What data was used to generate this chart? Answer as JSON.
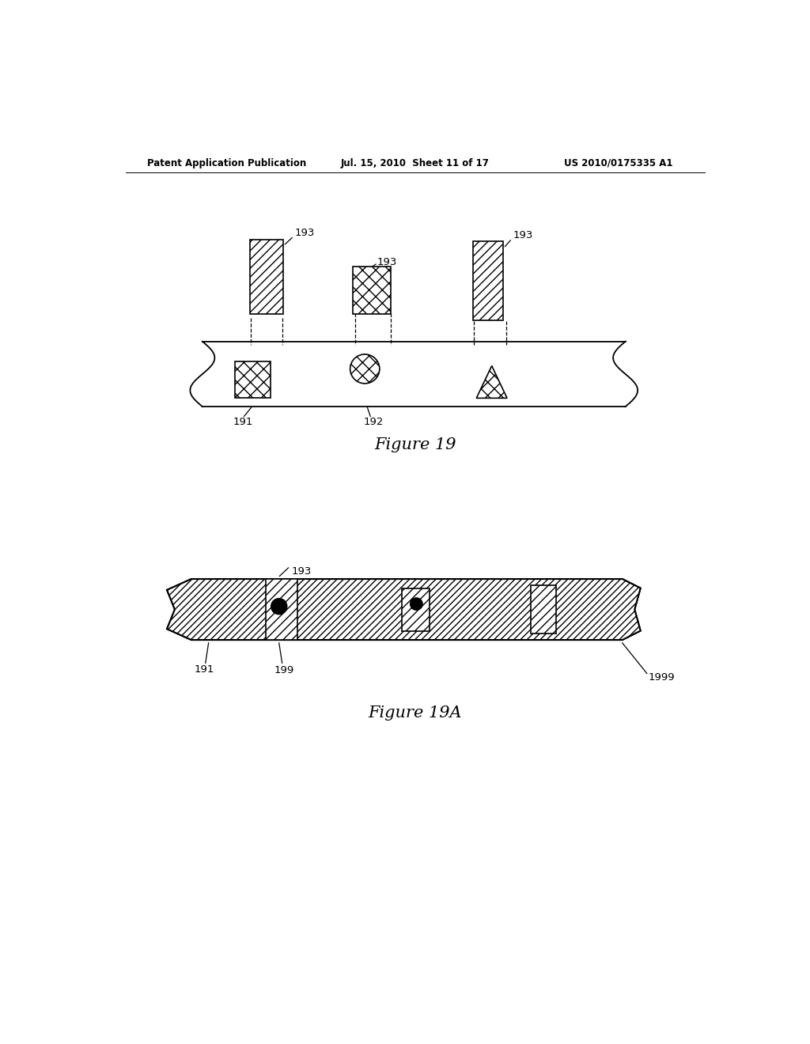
{
  "bg_color": "#ffffff",
  "header_left": "Patent Application Publication",
  "header_mid": "Jul. 15, 2010  Sheet 11 of 17",
  "header_right": "US 2010/0175335 A1",
  "fig19_caption": "Figure 19",
  "fig19a_caption": "Figure 19A",
  "label_193_1": "193",
  "label_193_2": "193",
  "label_193_3": "193",
  "label_193_4": "193",
  "label_191": "191",
  "label_192": "192",
  "label_191b": "191",
  "label_199": "199",
  "label_1999": "1999"
}
